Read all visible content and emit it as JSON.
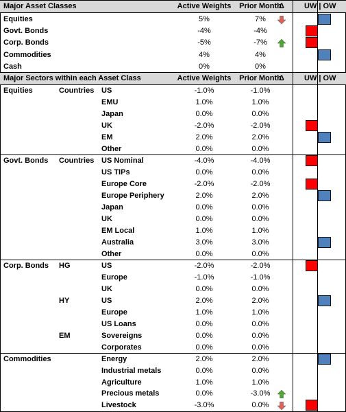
{
  "asset_header": {
    "title": "Major Asset Classes",
    "active": "Active Weights",
    "prior": "Prior Month",
    "delta": "Δ",
    "uwow": "UW | OW"
  },
  "asset_rows": [
    {
      "name": "Equities",
      "active": "5%",
      "prior": "7%",
      "arrow": "down",
      "bar": "ow"
    },
    {
      "name": "Govt. Bonds",
      "active": "-4%",
      "prior": "-4%",
      "arrow": "",
      "bar": "uw"
    },
    {
      "name": "Corp. Bonds",
      "active": "-5%",
      "prior": "-7%",
      "arrow": "up",
      "bar": "uw"
    },
    {
      "name": "Commodities",
      "active": "4%",
      "prior": "4%",
      "arrow": "",
      "bar": "ow"
    },
    {
      "name": "Cash",
      "active": "0%",
      "prior": "0%",
      "arrow": "",
      "bar": ""
    }
  ],
  "sector_header": {
    "title": "Major Sectors within each Asset Class",
    "active": "Active Weights",
    "prior": "Prior Month",
    "delta": "Δ",
    "uwow": "UW | OW"
  },
  "sector_rows": [
    {
      "c1": "Equities",
      "c2": "Countries",
      "name": "US",
      "active": "-1.0%",
      "prior": "-1.0%",
      "arrow": "",
      "bar": ""
    },
    {
      "c1": "",
      "c2": "",
      "name": "EMU",
      "active": "1.0%",
      "prior": "1.0%",
      "arrow": "",
      "bar": ""
    },
    {
      "c1": "",
      "c2": "",
      "name": "Japan",
      "active": "0.0%",
      "prior": "0.0%",
      "arrow": "",
      "bar": ""
    },
    {
      "c1": "",
      "c2": "",
      "name": "UK",
      "active": "-2.0%",
      "prior": "-2.0%",
      "arrow": "",
      "bar": "uw"
    },
    {
      "c1": "",
      "c2": "",
      "name": "EM",
      "active": "2.0%",
      "prior": "2.0%",
      "arrow": "",
      "bar": "ow"
    },
    {
      "c1": "",
      "c2": "",
      "name": "Other",
      "active": "0.0%",
      "prior": "0.0%",
      "arrow": "",
      "bar": ""
    },
    {
      "c1": "Govt. Bonds",
      "c2": "Countries",
      "name": "US Nominal",
      "active": "-4.0%",
      "prior": "-4.0%",
      "arrow": "",
      "bar": "uw"
    },
    {
      "c1": "",
      "c2": "",
      "name": "US TIPs",
      "active": "0.0%",
      "prior": "0.0%",
      "arrow": "",
      "bar": ""
    },
    {
      "c1": "",
      "c2": "",
      "name": "Europe Core",
      "active": "-2.0%",
      "prior": "-2.0%",
      "arrow": "",
      "bar": "uw"
    },
    {
      "c1": "",
      "c2": "",
      "name": "Europe Periphery",
      "active": "2.0%",
      "prior": "2.0%",
      "arrow": "",
      "bar": "ow"
    },
    {
      "c1": "",
      "c2": "",
      "name": "Japan",
      "active": "0.0%",
      "prior": "0.0%",
      "arrow": "",
      "bar": ""
    },
    {
      "c1": "",
      "c2": "",
      "name": "UK",
      "active": "0.0%",
      "prior": "0.0%",
      "arrow": "",
      "bar": ""
    },
    {
      "c1": "",
      "c2": "",
      "name": "EM Local",
      "active": "1.0%",
      "prior": "1.0%",
      "arrow": "",
      "bar": ""
    },
    {
      "c1": "",
      "c2": "",
      "name": "Australia",
      "active": "3.0%",
      "prior": "3.0%",
      "arrow": "",
      "bar": "ow"
    },
    {
      "c1": "",
      "c2": "",
      "name": "Other",
      "active": "0.0%",
      "prior": "0.0%",
      "arrow": "",
      "bar": ""
    },
    {
      "c1": "Corp. Bonds",
      "c2": "HG",
      "name": "US",
      "active": "-2.0%",
      "prior": "-2.0%",
      "arrow": "",
      "bar": "uw"
    },
    {
      "c1": "",
      "c2": "",
      "name": "Europe",
      "active": "-1.0%",
      "prior": "-1.0%",
      "arrow": "",
      "bar": ""
    },
    {
      "c1": "",
      "c2": "",
      "name": "UK",
      "active": "0.0%",
      "prior": "0.0%",
      "arrow": "",
      "bar": ""
    },
    {
      "c1": "",
      "c2": "HY",
      "name": "US",
      "active": "2.0%",
      "prior": "2.0%",
      "arrow": "",
      "bar": "ow"
    },
    {
      "c1": "",
      "c2": "",
      "name": "Europe",
      "active": "1.0%",
      "prior": "1.0%",
      "arrow": "",
      "bar": ""
    },
    {
      "c1": "",
      "c2": "",
      "name": "US Loans",
      "active": "0.0%",
      "prior": "0.0%",
      "arrow": "",
      "bar": ""
    },
    {
      "c1": "",
      "c2": "EM",
      "name": "Sovereigns",
      "active": "0.0%",
      "prior": "0.0%",
      "arrow": "",
      "bar": ""
    },
    {
      "c1": "",
      "c2": "",
      "name": "Corporates",
      "active": "0.0%",
      "prior": "0.0%",
      "arrow": "",
      "bar": ""
    },
    {
      "c1": "Commodities",
      "c2": "",
      "name": "Energy",
      "active": "2.0%",
      "prior": "2.0%",
      "arrow": "",
      "bar": "ow"
    },
    {
      "c1": "",
      "c2": "",
      "name": "Industrial metals",
      "active": "0.0%",
      "prior": "0.0%",
      "arrow": "",
      "bar": ""
    },
    {
      "c1": "",
      "c2": "",
      "name": "Agriculture",
      "active": "1.0%",
      "prior": "1.0%",
      "arrow": "",
      "bar": ""
    },
    {
      "c1": "",
      "c2": "",
      "name": "Precious metals",
      "active": "0.0%",
      "prior": "-3.0%",
      "arrow": "up",
      "bar": ""
    },
    {
      "c1": "",
      "c2": "",
      "name": "Livestock",
      "active": "-3.0%",
      "prior": "0.0%",
      "arrow": "down",
      "bar": "uw"
    }
  ],
  "colors": {
    "uw": "#ff0000",
    "ow": "#4f81bd",
    "up_arrow": "#4ea72e",
    "down_arrow": "#e0605a",
    "header_bg": "#d9d9d9"
  }
}
